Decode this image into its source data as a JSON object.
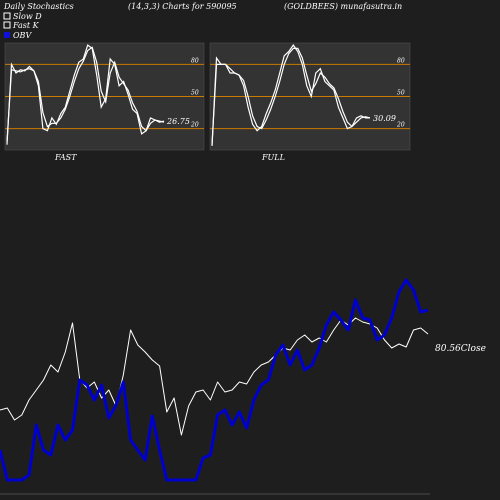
{
  "header": {
    "left": "Daily Stochastics",
    "center": "(14,3,3) Charts for 590095",
    "right": "(GOLDBEES) munafasutra.in"
  },
  "legend": {
    "items": [
      {
        "label": "Slow  D",
        "swatch": "box-white"
      },
      {
        "label": "Fast K",
        "swatch": "box-white"
      },
      {
        "label": "OBV",
        "swatch": "box-blue"
      }
    ]
  },
  "colors": {
    "background": "#1e1e1e",
    "panel_bg": "#333333",
    "level_line": "#cc7a00",
    "stoch_line": "#ffffff",
    "price_line": "#ffffff",
    "obv_line": "#0000cc"
  },
  "chart_data": [
    {
      "type": "line",
      "panel": "FAST",
      "levels": [
        80,
        50,
        20
      ],
      "ylim": [
        0,
        100
      ],
      "last_value_label": "26.75",
      "series": [
        {
          "values": [
            5,
            80,
            72,
            75,
            74,
            78,
            74,
            60,
            20,
            18,
            30,
            24,
            34,
            40,
            55,
            70,
            82,
            85,
            98,
            95,
            70,
            40,
            48,
            85,
            80,
            60,
            64,
            52,
            38,
            34,
            15,
            18,
            30,
            28,
            26,
            27
          ]
        },
        {
          "values": [
            8,
            75,
            74,
            73,
            75,
            76,
            74,
            64,
            35,
            22,
            25,
            25,
            30,
            38,
            50,
            64,
            76,
            83,
            93,
            96,
            82,
            55,
            45,
            72,
            82,
            68,
            62,
            56,
            44,
            36,
            22,
            18,
            25,
            28,
            27,
            26
          ]
        }
      ]
    },
    {
      "type": "line",
      "panel": "FULL",
      "levels": [
        80,
        50,
        20
      ],
      "ylim": [
        0,
        100
      ],
      "last_value_label": "30.09",
      "series": [
        {
          "values": [
            4,
            86,
            80,
            80,
            72,
            72,
            70,
            60,
            40,
            24,
            18,
            22,
            34,
            44,
            56,
            72,
            88,
            92,
            98,
            92,
            80,
            60,
            50,
            72,
            76,
            64,
            60,
            56,
            40,
            30,
            20,
            22,
            30,
            32,
            30,
            30
          ]
        },
        {
          "values": [
            4,
            80,
            80,
            80,
            76,
            72,
            70,
            65,
            50,
            32,
            22,
            20,
            28,
            38,
            50,
            64,
            80,
            90,
            95,
            95,
            86,
            70,
            55,
            62,
            72,
            68,
            62,
            58,
            48,
            36,
            26,
            22,
            26,
            30,
            31,
            30
          ]
        }
      ]
    },
    {
      "type": "line",
      "panel": "price-obv",
      "close_label": "80.56Close",
      "series": [
        {
          "name": "Close",
          "values": [
            10,
            12,
            0,
            5,
            20,
            30,
            40,
            55,
            48,
            68,
            97,
            40,
            32,
            38,
            22,
            30,
            14,
            45,
            90,
            75,
            68,
            60,
            54,
            8,
            22,
            -15,
            14,
            28,
            30,
            20,
            38,
            28,
            30,
            38,
            36,
            48,
            55,
            58,
            65,
            72,
            70,
            80,
            85,
            78,
            82,
            78,
            90,
            100,
            95,
            102,
            98,
            96,
            92,
            80,
            72,
            76,
            73,
            90,
            92,
            86
          ]
        },
        {
          "name": "OBV",
          "values": [
            -30,
            -60,
            -60,
            -60,
            -55,
            -5,
            -30,
            -35,
            -5,
            -20,
            -10,
            40,
            35,
            20,
            35,
            2,
            15,
            38,
            -20,
            -30,
            -40,
            4,
            -30,
            -60,
            -60,
            -60,
            -60,
            -60,
            -38,
            -35,
            5,
            10,
            -5,
            8,
            -8,
            20,
            35,
            40,
            65,
            75,
            55,
            70,
            50,
            55,
            72,
            95,
            108,
            100,
            90,
            120,
            102,
            100,
            80,
            85,
            102,
            128,
            140,
            130,
            108,
            110
          ]
        }
      ]
    }
  ]
}
